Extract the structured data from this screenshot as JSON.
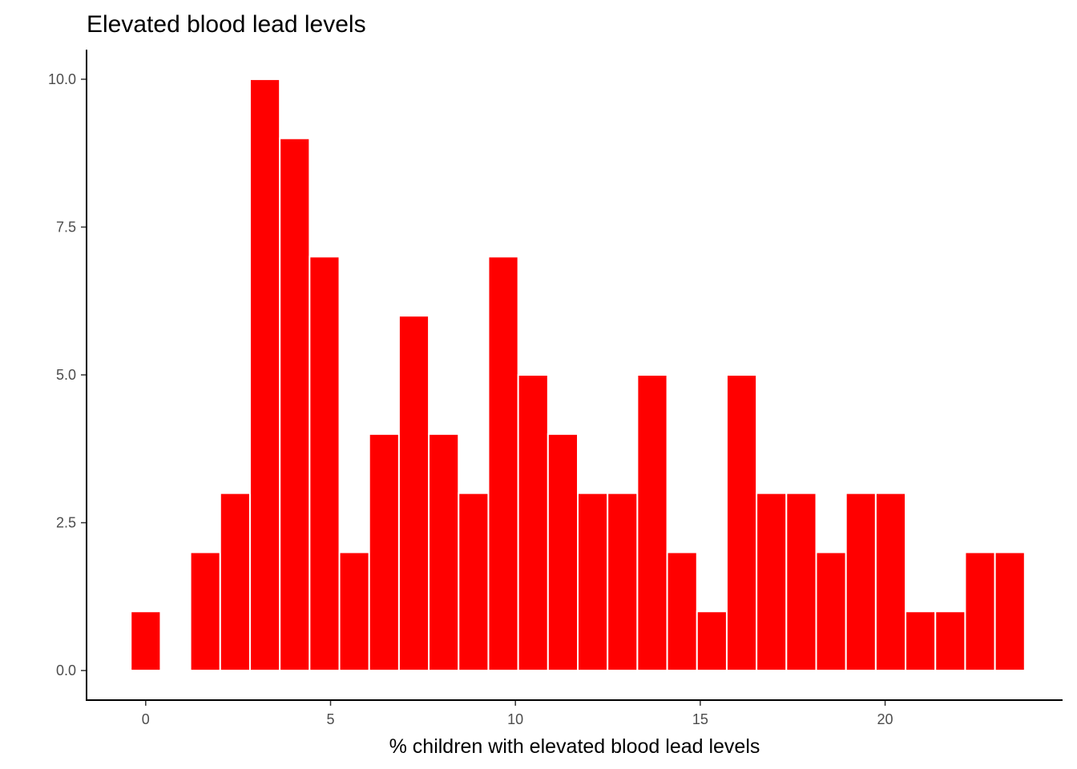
{
  "chart_data": {
    "type": "bar",
    "title": "Elevated blood lead levels",
    "xlabel": "% children with elevated blood lead levels",
    "ylabel": "",
    "bar_color": "#FF0000",
    "bin_width": 0.806,
    "x": [
      0.0,
      0.806,
      1.612,
      2.418,
      3.224,
      4.03,
      4.836,
      5.642,
      6.448,
      7.254,
      8.06,
      8.866,
      9.672,
      10.478,
      11.284,
      12.09,
      12.896,
      13.702,
      14.508,
      15.314,
      16.12,
      16.926,
      17.732,
      18.538,
      19.344,
      20.15,
      20.956,
      21.762,
      22.568,
      23.374
    ],
    "values": [
      1,
      0,
      2,
      3,
      10,
      9,
      7,
      2,
      4,
      6,
      4,
      3,
      7,
      5,
      4,
      3,
      3,
      5,
      2,
      1,
      5,
      3,
      3,
      2,
      3,
      3,
      1,
      1,
      2,
      2
    ],
    "xlim": [
      -1.6,
      24.8
    ],
    "ylim": [
      -0.5,
      10.5
    ],
    "x_ticks": [
      0,
      5,
      10,
      15,
      20
    ],
    "x_tick_labels": [
      "0",
      "5",
      "10",
      "15",
      "20"
    ],
    "y_ticks": [
      0,
      2.5,
      5,
      7.5,
      10
    ],
    "y_tick_labels": [
      "0.0",
      "2.5",
      "5.0",
      "7.5",
      "10.0"
    ],
    "grid": false,
    "legend": "none"
  }
}
